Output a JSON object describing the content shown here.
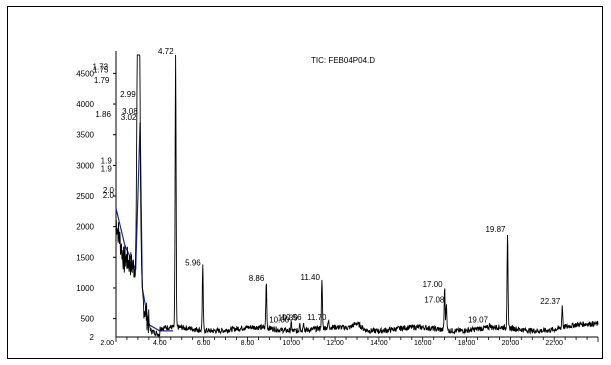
{
  "chart_data": {
    "type": "line",
    "title": "TIC: FEB04P04.D",
    "xlabel": "",
    "ylabel": "",
    "xlim": [
      2.0,
      24.0
    ],
    "ylim": [
      200,
      4800
    ],
    "y_ticks": [
      "4500",
      "4000",
      "3500",
      "3000",
      "2500",
      "2000",
      "1500",
      "1000",
      "500"
    ],
    "y_tick_values": [
      4500,
      4000,
      3500,
      3000,
      2500,
      2000,
      1500,
      1000,
      500
    ],
    "origin_label_y": "2",
    "origin_label_x": "2.00",
    "x_ticks": [
      "4.00",
      "6.00",
      "8.00",
      "10.00",
      "12.00",
      "14.00",
      "16.00",
      "18.00",
      "20.00",
      "22.00"
    ],
    "x_tick_values": [
      4,
      6,
      8,
      10,
      12,
      14,
      16,
      18,
      20,
      22
    ],
    "peaks": [
      {
        "label": "1.73",
        "x": 1.73,
        "y": 4550
      },
      {
        "label": "1.75",
        "x": 1.75,
        "y": 4500
      },
      {
        "label": "1.79",
        "x": 1.79,
        "y": 4330
      },
      {
        "label": "1.86",
        "x": 1.86,
        "y": 3770
      },
      {
        "label": "1.9",
        "x": 1.9,
        "y": 3010
      },
      {
        "label": "1.9",
        "x": 1.9,
        "y": 2880
      },
      {
        "label": "2.0",
        "x": 2.0,
        "y": 2530
      },
      {
        "label": "2.0",
        "x": 2.0,
        "y": 2450
      },
      {
        "label": "2.99",
        "x": 2.99,
        "y": 4100
      },
      {
        "label": "3.08",
        "x": 3.08,
        "y": 3820
      },
      {
        "label": "3.02",
        "x": 3.02,
        "y": 3720
      },
      {
        "label": "4.72",
        "x": 4.72,
        "y": 4800
      },
      {
        "label": "5.96",
        "x": 5.96,
        "y": 1350
      },
      {
        "label": "8.86",
        "x": 8.86,
        "y": 1100
      },
      {
        "label": "10.00",
        "x": 10.0,
        "y": 420
      },
      {
        "label": "10.39",
        "x": 10.39,
        "y": 450
      },
      {
        "label": "10.56",
        "x": 10.56,
        "y": 460
      },
      {
        "label": "11.40",
        "x": 11.4,
        "y": 1110
      },
      {
        "label": "11.70",
        "x": 11.7,
        "y": 460
      },
      {
        "label": "17.00",
        "x": 17.0,
        "y": 1000
      },
      {
        "label": "17.08",
        "x": 17.08,
        "y": 750
      },
      {
        "label": "19.07",
        "x": 19.07,
        "y": 420
      },
      {
        "label": "19.87",
        "x": 19.87,
        "y": 1900
      },
      {
        "label": "22.37",
        "x": 22.37,
        "y": 720
      }
    ],
    "baseline_fill_color": "#1f2b8f",
    "trace_color": "#000000"
  }
}
